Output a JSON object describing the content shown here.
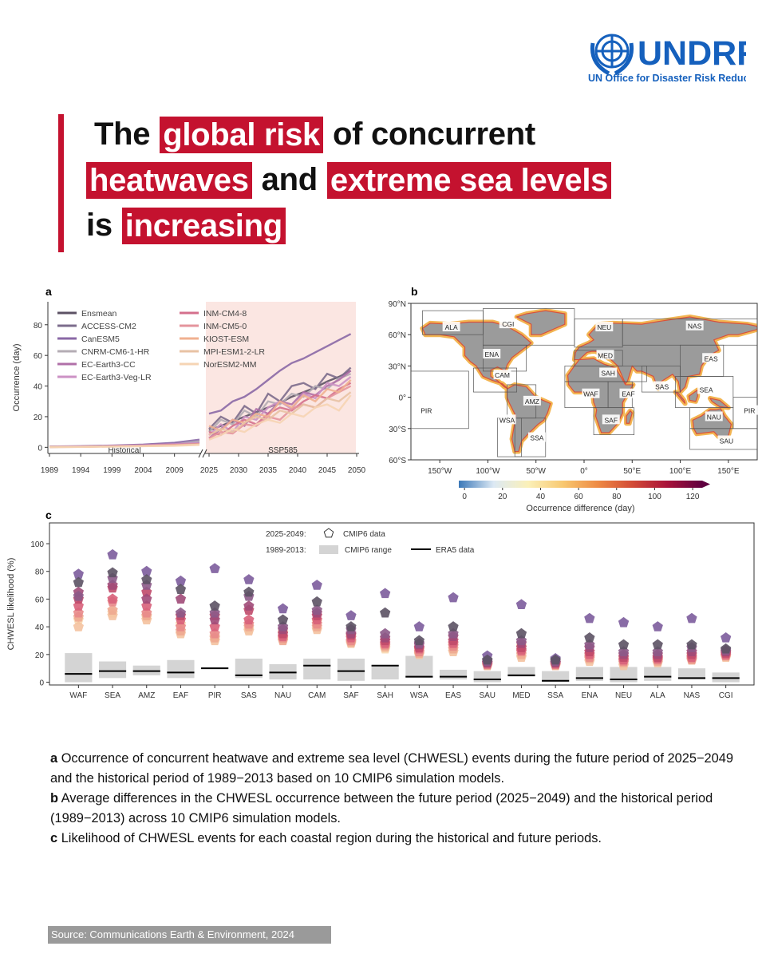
{
  "header": {
    "logo": "UNDRR",
    "logo_subtitle": "UN Office for Disaster Risk Reduction"
  },
  "title": {
    "lines": [
      [
        {
          "text": "The",
          "highlight": false
        },
        {
          "text": "global risk",
          "highlight": true
        },
        {
          "text": "of concurrent",
          "highlight": false
        }
      ],
      [
        {
          "text": "heatwaves",
          "highlight": true
        },
        {
          "text": "and",
          "highlight": false
        },
        {
          "text": "extreme sea levels",
          "highlight": true
        }
      ],
      [
        {
          "text": "is",
          "highlight": false
        },
        {
          "text": "increasing",
          "highlight": true
        }
      ]
    ]
  },
  "chart_data": [
    {
      "type": "line",
      "panel_label": "a",
      "ylabel": "Occurrence (day)",
      "ylim": [
        -4,
        95
      ],
      "yticks": [
        0,
        20,
        40,
        60,
        80
      ],
      "x": [
        1989,
        1994,
        1999,
        2004,
        2009,
        2013,
        2025,
        2027,
        2029,
        2031,
        2033,
        2035,
        2037,
        2039,
        2041,
        2043,
        2045,
        2047,
        2049
      ],
      "x_segments": [
        {
          "label": "Historical",
          "xlim": [
            1989,
            2013
          ],
          "xticks": [
            1989,
            1994,
            1999,
            2004,
            2009
          ]
        },
        {
          "label": "SSP585",
          "xlim": [
            2025,
            2050
          ],
          "xticks": [
            2025,
            2030,
            2035,
            2040,
            2045,
            2050
          ]
        }
      ],
      "series": [
        {
          "name": "Ensmean",
          "color": "#5c5264",
          "values": [
            0.4,
            0.6,
            0.9,
            1.3,
            2.1,
            2.8,
            11,
            14,
            17,
            20,
            23,
            26,
            29,
            33,
            36,
            39,
            43,
            46,
            50
          ]
        },
        {
          "name": "ACCESS-CM2",
          "color": "#7c6c8c",
          "values": [
            0.3,
            0.5,
            1,
            1.5,
            2.5,
            3.5,
            12,
            20,
            16,
            27,
            22,
            35,
            30,
            40,
            42,
            38,
            48,
            45,
            52
          ]
        },
        {
          "name": "CanESM5",
          "color": "#8a68a6",
          "values": [
            0.5,
            0.8,
            1.2,
            1.8,
            3,
            5,
            22,
            24,
            30,
            33,
            38,
            44,
            50,
            55,
            58,
            62,
            66,
            70,
            74
          ]
        },
        {
          "name": "CNRM-CM6-1-HR",
          "color": "#b4acb4",
          "values": [
            0.2,
            0.4,
            0.8,
            1.2,
            2,
            4,
            10,
            18,
            15,
            24,
            20,
            30,
            28,
            35,
            33,
            40,
            38,
            45,
            48
          ]
        },
        {
          "name": "EC-Earth3-CC",
          "color": "#b070a8",
          "values": [
            0.3,
            0.6,
            0.9,
            1.4,
            2.2,
            2.5,
            6,
            12,
            18,
            14,
            25,
            22,
            30,
            28,
            36,
            34,
            40,
            44,
            50
          ]
        },
        {
          "name": "EC-Earth3-Veg-LR",
          "color": "#cc92c4",
          "values": [
            0.4,
            0.5,
            1,
            1.3,
            2,
            3,
            8,
            15,
            10,
            20,
            18,
            26,
            30,
            25,
            35,
            32,
            42,
            40,
            46
          ]
        },
        {
          "name": "INM-CM4-8",
          "color": "#d4708c",
          "values": [
            0.2,
            0.4,
            0.7,
            1,
            1.6,
            2.2,
            10,
            8,
            14,
            18,
            15,
            22,
            26,
            24,
            30,
            34,
            32,
            38,
            42
          ]
        },
        {
          "name": "INM-CM5-0",
          "color": "#e4949c",
          "values": [
            0.3,
            0.4,
            0.6,
            1,
            1.5,
            2,
            6,
            10,
            9,
            15,
            14,
            20,
            18,
            25,
            28,
            26,
            32,
            36,
            40
          ]
        },
        {
          "name": "KIOST-ESM",
          "color": "#f0b090",
          "values": [
            0.2,
            0.3,
            0.6,
            0.9,
            1.4,
            2,
            14,
            11,
            18,
            16,
            22,
            20,
            30,
            26,
            34,
            30,
            38,
            36,
            44
          ]
        },
        {
          "name": "MPI-ESM1-2-LR",
          "color": "#e8c2a4",
          "values": [
            0.1,
            0.3,
            0.5,
            0.8,
            1.2,
            1.8,
            8,
            12,
            10,
            16,
            20,
            18,
            24,
            22,
            28,
            26,
            32,
            30,
            36
          ]
        },
        {
          "name": "NorESM2-MM",
          "color": "#f6d4b4",
          "values": [
            0.2,
            0.3,
            0.5,
            0.7,
            1,
            1.6,
            5,
            8,
            12,
            10,
            15,
            18,
            16,
            22,
            20,
            26,
            28,
            24,
            34
          ]
        }
      ]
    },
    {
      "type": "map",
      "panel_label": "b",
      "xlim": [
        -180,
        180
      ],
      "ylim": [
        -60,
        90
      ],
      "xticks": [
        {
          "value": -150,
          "label": "150°W"
        },
        {
          "value": -100,
          "label": "100°W"
        },
        {
          "value": -50,
          "label": "50°W"
        },
        {
          "value": 0,
          "label": "0°"
        },
        {
          "value": 50,
          "label": "50°E"
        },
        {
          "value": 100,
          "label": "100°E"
        },
        {
          "value": 150,
          "label": "150°E"
        }
      ],
      "yticks": [
        {
          "value": 90,
          "label": "90°N"
        },
        {
          "value": 60,
          "label": "60°N"
        },
        {
          "value": 30,
          "label": "30°N"
        },
        {
          "value": 0,
          "label": "0°"
        },
        {
          "value": -30,
          "label": "30°S"
        },
        {
          "value": -60,
          "label": "60°S"
        }
      ],
      "regions": [
        "ALA",
        "CGI",
        "NEU",
        "NAS",
        "ENA",
        "MED",
        "EAS",
        "CAM",
        "SAH",
        "SAS",
        "SEA",
        "PIR",
        "PIR",
        "AMZ",
        "WAF",
        "EAF",
        "NAU",
        "WSA",
        "SAF",
        "SAU",
        "SSA"
      ],
      "colorbar": {
        "label": "Occurrence difference (day)",
        "lim": [
          -3,
          125
        ],
        "ticks": [
          0,
          20,
          40,
          60,
          80,
          100,
          120
        ],
        "colors": [
          "#3b78b8",
          "#dce9f4",
          "#fbf0b8",
          "#f8c870",
          "#ee8a44",
          "#d24a36",
          "#a8123a",
          "#600040"
        ]
      }
    },
    {
      "type": "scatter_box",
      "panel_label": "c",
      "ylabel": "CHWESL likelihood (%)",
      "ylim": [
        -2,
        115
      ],
      "yticks": [
        0,
        20,
        40,
        60,
        80,
        100
      ],
      "categories": [
        "WAF",
        "SEA",
        "AMZ",
        "EAF",
        "PIR",
        "SAS",
        "NAU",
        "CAM",
        "SAF",
        "SAH",
        "WSA",
        "EAS",
        "SAU",
        "MED",
        "SSA",
        "ENA",
        "NEU",
        "ALA",
        "NAS",
        "CGI"
      ],
      "future_colors": [
        "#5c5264",
        "#7c5c9c",
        "#8c5a88",
        "#a04a78",
        "#c04a6a",
        "#d8607a",
        "#e88a8a",
        "#eea890",
        "#f4c2a0",
        "#f8d8b0"
      ],
      "future_values": [
        [
          72,
          78,
          62,
          65,
          60,
          55,
          50,
          47,
          40,
          45
        ],
        [
          79,
          92,
          75,
          70,
          68,
          60,
          58,
          52,
          48,
          50
        ],
        [
          74,
          80,
          70,
          60,
          65,
          55,
          50,
          48,
          45,
          47
        ],
        [
          67,
          73,
          50,
          60,
          48,
          45,
          40,
          37,
          35,
          42
        ],
        [
          55,
          82,
          50,
          45,
          48,
          40,
          35,
          32,
          30,
          33
        ],
        [
          65,
          74,
          62,
          55,
          52,
          45,
          42,
          40,
          37,
          38
        ],
        [
          45,
          53,
          40,
          38,
          35,
          33,
          32,
          30,
          31,
          36
        ],
        [
          58,
          70,
          52,
          50,
          48,
          45,
          42,
          40,
          38,
          44
        ],
        [
          40,
          48,
          38,
          35,
          34,
          32,
          30,
          29,
          28,
          33
        ],
        [
          50,
          64,
          35,
          32,
          30,
          28,
          27,
          26,
          25,
          24
        ],
        [
          30,
          40,
          28,
          27,
          25,
          24,
          22,
          21,
          20,
          23
        ],
        [
          40,
          61,
          35,
          33,
          30,
          28,
          26,
          24,
          22,
          27
        ],
        [
          16,
          19,
          15,
          14,
          14,
          13,
          13,
          12,
          12,
          15
        ],
        [
          35,
          56,
          30,
          28,
          25,
          23,
          22,
          20,
          18,
          26
        ],
        [
          16,
          17,
          15,
          14,
          14,
          13,
          13,
          12,
          12,
          15
        ],
        [
          32,
          46,
          27,
          25,
          22,
          20,
          18,
          17,
          15,
          19
        ],
        [
          27,
          43,
          22,
          20,
          18,
          16,
          15,
          14,
          12,
          17
        ],
        [
          27,
          40,
          22,
          20,
          18,
          17,
          16,
          15,
          14,
          16
        ],
        [
          27,
          46,
          25,
          22,
          20,
          18,
          17,
          16,
          16,
          19
        ],
        [
          24,
          32,
          23,
          22,
          21,
          20,
          19,
          19,
          18,
          22
        ]
      ],
      "range": [
        [
          0,
          21
        ],
        [
          3,
          15
        ],
        [
          5,
          12
        ],
        [
          3,
          16
        ],
        [
          10,
          11
        ],
        [
          3,
          17
        ],
        [
          2,
          13
        ],
        [
          2,
          17
        ],
        [
          1,
          17
        ],
        [
          2,
          12
        ],
        [
          3,
          19
        ],
        [
          2,
          9
        ],
        [
          0,
          8
        ],
        [
          4,
          11
        ],
        [
          0,
          8
        ],
        [
          1,
          11
        ],
        [
          0,
          11
        ],
        [
          1,
          11
        ],
        [
          2,
          10
        ],
        [
          0,
          7
        ]
      ],
      "era5": [
        6,
        8,
        8,
        7,
        10,
        5,
        7,
        12,
        8,
        12,
        4,
        4,
        2,
        5,
        1,
        3,
        2,
        4,
        3,
        3
      ],
      "range_color": "#d4d4d4",
      "era5_color": "#000000",
      "legend": {
        "future_period": "2025-2049:",
        "future_label": "CMIP6 data",
        "hist_period": "1989-2013:",
        "range_label": "CMIP6 range",
        "era5_label": "ERA5 data"
      }
    }
  ],
  "caption": [
    {
      "label": "a",
      "text": "Occurrence of concurrent heatwave and extreme sea level (CHWESL) events during the future period of 2025−2049 and the historical period of 1989−2013 based on 10 CMIP6 simulation models."
    },
    {
      "label": "b",
      "text": "Average differences in the CHWESL occurrence between the future period (2025−2049) and the historical period (1989−2013) across 10 CMIP6 simulation models."
    },
    {
      "label": "c",
      "text": "Likelihood of CHWESL events for each coastal region during the historical and future periods."
    }
  ],
  "source": "Source:  Communications Earth & Environment, 2024"
}
